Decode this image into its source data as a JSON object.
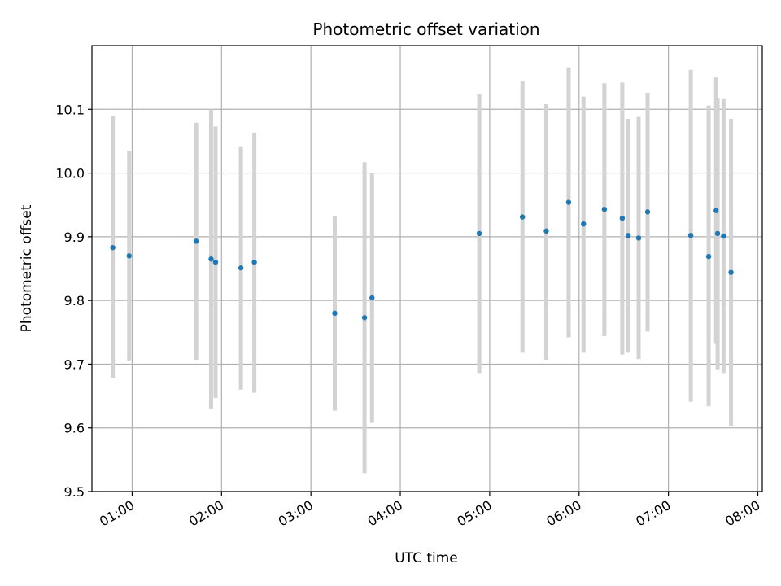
{
  "chart_data": {
    "type": "scatter",
    "title": "Photometric offset variation",
    "xlabel": "UTC time",
    "ylabel": "Photometric offset",
    "x_unit": "hours UTC",
    "xlim": [
      "00:33",
      "08:03"
    ],
    "ylim": [
      9.5,
      10.2
    ],
    "x_ticks": [
      "01:00",
      "02:00",
      "03:00",
      "04:00",
      "05:00",
      "06:00",
      "07:00",
      "08:00"
    ],
    "y_ticks": [
      "9.5",
      "9.6",
      "9.7",
      "9.8",
      "9.9",
      "10.0",
      "10.1"
    ],
    "grid": true,
    "point_color": "#1f77b4",
    "errorbar_color": "#d3d3d3",
    "points": [
      {
        "time": "00:47",
        "y": 9.883,
        "ylow": 9.678,
        "yhigh": 10.09
      },
      {
        "time": "00:58",
        "y": 9.87,
        "ylow": 9.705,
        "yhigh": 10.035
      },
      {
        "time": "01:43",
        "y": 9.893,
        "ylow": 9.707,
        "yhigh": 10.079
      },
      {
        "time": "01:53",
        "y": 9.865,
        "ylow": 9.63,
        "yhigh": 10.1
      },
      {
        "time": "01:56",
        "y": 9.86,
        "ylow": 9.647,
        "yhigh": 10.073
      },
      {
        "time": "02:13",
        "y": 9.851,
        "ylow": 9.66,
        "yhigh": 10.042
      },
      {
        "time": "02:22",
        "y": 9.86,
        "ylow": 9.655,
        "yhigh": 10.063
      },
      {
        "time": "03:16",
        "y": 9.78,
        "ylow": 9.627,
        "yhigh": 9.933
      },
      {
        "time": "03:36",
        "y": 9.773,
        "ylow": 9.529,
        "yhigh": 10.017
      },
      {
        "time": "03:41",
        "y": 9.804,
        "ylow": 9.608,
        "yhigh": 10.0
      },
      {
        "time": "04:53",
        "y": 9.905,
        "ylow": 9.686,
        "yhigh": 10.124
      },
      {
        "time": "05:22",
        "y": 9.931,
        "ylow": 9.718,
        "yhigh": 10.144
      },
      {
        "time": "05:38",
        "y": 9.909,
        "ylow": 9.707,
        "yhigh": 10.108
      },
      {
        "time": "05:53",
        "y": 9.954,
        "ylow": 9.742,
        "yhigh": 10.166
      },
      {
        "time": "06:03",
        "y": 9.92,
        "ylow": 9.718,
        "yhigh": 10.12
      },
      {
        "time": "06:17",
        "y": 9.943,
        "ylow": 9.744,
        "yhigh": 10.141
      },
      {
        "time": "06:29",
        "y": 9.929,
        "ylow": 9.715,
        "yhigh": 10.142
      },
      {
        "time": "06:33",
        "y": 9.902,
        "ylow": 9.718,
        "yhigh": 10.085
      },
      {
        "time": "06:40",
        "y": 9.898,
        "ylow": 9.708,
        "yhigh": 10.088
      },
      {
        "time": "06:46",
        "y": 9.939,
        "ylow": 9.751,
        "yhigh": 10.126
      },
      {
        "time": "07:15",
        "y": 9.902,
        "ylow": 9.641,
        "yhigh": 10.162
      },
      {
        "time": "07:27",
        "y": 9.869,
        "ylow": 9.634,
        "yhigh": 10.106
      },
      {
        "time": "07:32",
        "y": 9.941,
        "ylow": 9.732,
        "yhigh": 10.15
      },
      {
        "time": "07:33",
        "y": 9.905,
        "ylow": 9.692,
        "yhigh": 10.118
      },
      {
        "time": "07:37",
        "y": 9.901,
        "ylow": 9.686,
        "yhigh": 10.116
      },
      {
        "time": "07:42",
        "y": 9.844,
        "ylow": 9.603,
        "yhigh": 10.085
      }
    ]
  }
}
